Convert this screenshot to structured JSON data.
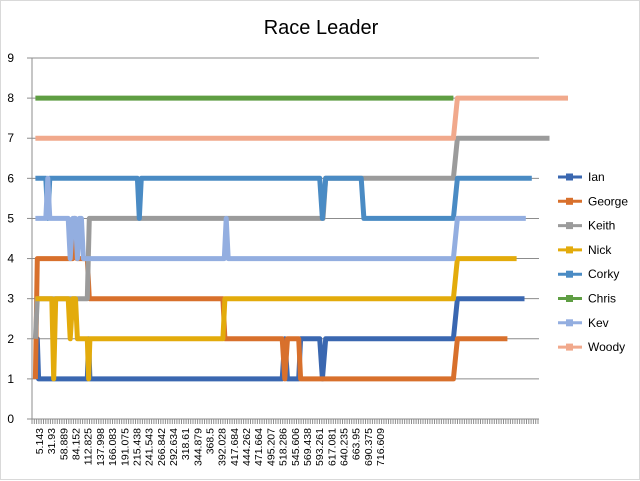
{
  "chart_data": {
    "type": "line",
    "title": "Race Leader",
    "xlabel": "",
    "ylabel": "",
    "ylim": [
      0,
      9
    ],
    "y_ticks": [
      0,
      1,
      2,
      3,
      4,
      5,
      6,
      7,
      8,
      9
    ],
    "grid": "horizontal",
    "legend_position": "right",
    "x_tick_labels": [
      "5.143",
      "31.93",
      "58.889",
      "84.152",
      "112.825",
      "137.998",
      "166.083",
      "191.075",
      "215.438",
      "241.543",
      "266.842",
      "292.634",
      "318.61",
      "344.879",
      "368.5",
      "392.028",
      "417.684",
      "444.262",
      "471.664",
      "495.207",
      "518.286",
      "545.606",
      "569.438",
      "593.261",
      "617.081",
      "640.235",
      "663.95",
      "690.375",
      "716.609"
    ],
    "series": [
      {
        "name": "Ian",
        "color": "#3a67b0",
        "points": [
          [
            5.143,
            2
          ],
          [
            8,
            2
          ],
          [
            10,
            1
          ],
          [
            84,
            1
          ],
          [
            86,
            2
          ],
          [
            88,
            1
          ],
          [
            380,
            1
          ],
          [
            384,
            2
          ],
          [
            388,
            1
          ],
          [
            405,
            1
          ],
          [
            408,
            2
          ],
          [
            437,
            2
          ],
          [
            441,
            1
          ],
          [
            446,
            2
          ],
          [
            640,
            2
          ],
          [
            646,
            3
          ],
          [
            748,
            3
          ]
        ]
      },
      {
        "name": "George",
        "color": "#d8702c",
        "points": [
          [
            5.143,
            1
          ],
          [
            8,
            4
          ],
          [
            62,
            4
          ],
          [
            65,
            5
          ],
          [
            68,
            4
          ],
          [
            84,
            4
          ],
          [
            87,
            3
          ],
          [
            290,
            3
          ],
          [
            293,
            2
          ],
          [
            380,
            2
          ],
          [
            384,
            1
          ],
          [
            388,
            2
          ],
          [
            405,
            2
          ],
          [
            408,
            1
          ],
          [
            640,
            1
          ],
          [
            646,
            2
          ],
          [
            722,
            2
          ]
        ]
      },
      {
        "name": "Keith",
        "color": "#9b9b9b",
        "points": [
          [
            5.143,
            2
          ],
          [
            8,
            3
          ],
          [
            84,
            3
          ],
          [
            87,
            5
          ],
          [
            442,
            5
          ],
          [
            446,
            6
          ],
          [
            640,
            6
          ],
          [
            646,
            7
          ],
          [
            786,
            7
          ]
        ]
      },
      {
        "name": "Nick",
        "color": "#e3ab0b",
        "points": [
          [
            5.143,
            3
          ],
          [
            30,
            3
          ],
          [
            33,
            1
          ],
          [
            36,
            3
          ],
          [
            55,
            3
          ],
          [
            58,
            2
          ],
          [
            62,
            3
          ],
          [
            66,
            3
          ],
          [
            69,
            2
          ],
          [
            84,
            2
          ],
          [
            86,
            1
          ],
          [
            88,
            2
          ],
          [
            290,
            2
          ],
          [
            293,
            3
          ],
          [
            640,
            3
          ],
          [
            646,
            4
          ],
          [
            736,
            4
          ]
        ]
      },
      {
        "name": "Corky",
        "color": "#4a8bc4",
        "points": [
          [
            5.143,
            6
          ],
          [
            21,
            6
          ],
          [
            24,
            5
          ],
          [
            27,
            6
          ],
          [
            160,
            6
          ],
          [
            163,
            5
          ],
          [
            166,
            6
          ],
          [
            437,
            6
          ],
          [
            441,
            5
          ],
          [
            446,
            6
          ],
          [
            500,
            6
          ],
          [
            504,
            5
          ],
          [
            640,
            5
          ],
          [
            646,
            6
          ],
          [
            759,
            6
          ]
        ]
      },
      {
        "name": "Chris",
        "color": "#5f9e43",
        "points": [
          [
            5.143,
            8
          ],
          [
            640,
            8
          ]
        ]
      },
      {
        "name": "Kev",
        "color": "#93aee0",
        "points": [
          [
            5.143,
            5
          ],
          [
            21,
            5
          ],
          [
            24,
            6
          ],
          [
            27,
            5
          ],
          [
            55,
            5
          ],
          [
            58,
            4
          ],
          [
            62,
            5
          ],
          [
            66,
            5
          ],
          [
            69,
            4
          ],
          [
            72,
            5
          ],
          [
            75,
            5
          ],
          [
            78,
            4
          ],
          [
            292,
            4
          ],
          [
            295,
            5
          ],
          [
            298,
            4
          ],
          [
            640,
            4
          ],
          [
            646,
            5
          ],
          [
            750,
            5
          ]
        ]
      },
      {
        "name": "Woody",
        "color": "#f1a98c",
        "points": [
          [
            5.143,
            7
          ],
          [
            640,
            7
          ],
          [
            646,
            8
          ],
          [
            814,
            8
          ]
        ]
      }
    ]
  }
}
